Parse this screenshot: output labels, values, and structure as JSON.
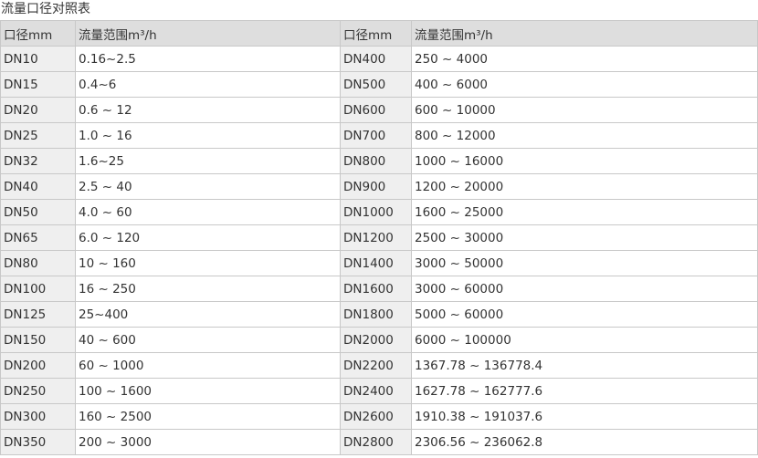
{
  "title": "流量口径对照表",
  "headers": [
    "口径mm",
    "流量范围m³/h",
    "口径mm",
    "流量范围m³/h"
  ],
  "rows": [
    [
      "DN10",
      "0.16~2.5",
      "DN400",
      "250 ~ 4000"
    ],
    [
      "DN15",
      "0.4~6",
      "DN500",
      "400 ~ 6000"
    ],
    [
      "DN20",
      "0.6 ~ 12",
      "DN600",
      "600 ~ 10000"
    ],
    [
      "DN25",
      "1.0 ~ 16",
      "DN700",
      "800 ~ 12000"
    ],
    [
      "DN32",
      "1.6~25",
      "DN800",
      "1000 ~ 16000"
    ],
    [
      "DN40",
      "2.5 ~ 40",
      "DN900",
      "1200 ~ 20000"
    ],
    [
      "DN50",
      "4.0 ~ 60",
      "DN1000",
      "1600 ~ 25000"
    ],
    [
      "DN65",
      "6.0 ~ 120",
      "DN1200",
      "2500 ~ 30000"
    ],
    [
      "DN80",
      "10 ~ 160",
      "DN1400",
      "3000 ~ 50000"
    ],
    [
      "DN100",
      "16 ~ 250",
      "DN1600",
      "3000 ~ 60000"
    ],
    [
      "DN125",
      "25~400",
      "DN1800",
      "5000 ~ 60000"
    ],
    [
      "DN150",
      "40 ~ 600",
      "DN2000",
      "6000 ~ 100000"
    ],
    [
      "DN200",
      "60 ~ 1000",
      "DN2200",
      "1367.78 ~ 136778.4"
    ],
    [
      "DN250",
      "100 ~ 1600",
      "DN2400",
      "1627.78 ~ 162777.6"
    ],
    [
      "DN300",
      "160 ~ 2500",
      "DN2600",
      "1910.38 ~ 191037.6"
    ],
    [
      "DN350",
      "200 ~ 3000",
      "DN2800",
      "2306.56 ~ 236062.8"
    ]
  ]
}
